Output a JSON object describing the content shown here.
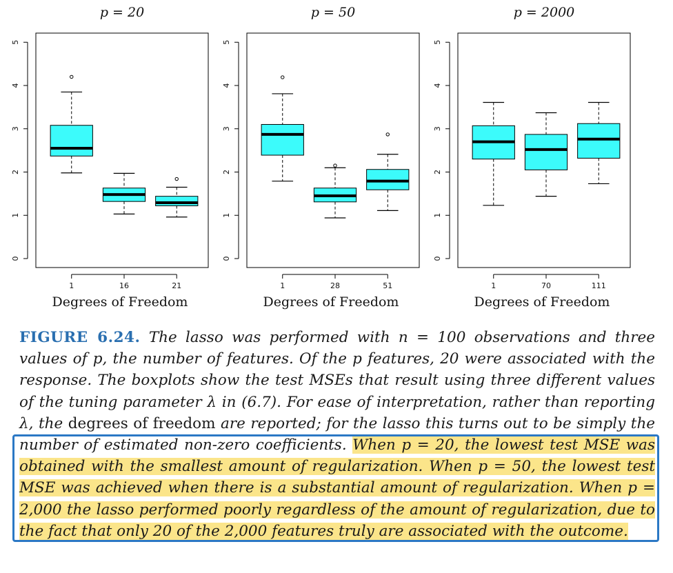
{
  "chart_data": [
    {
      "type": "box",
      "title": "p = 20",
      "xlabel": "Degrees of Freedom",
      "ylabel": "",
      "ylim": [
        0,
        5
      ],
      "yticks": [
        0,
        1,
        2,
        3,
        4,
        5
      ],
      "categories": [
        "1",
        "16",
        "21"
      ],
      "boxes": [
        {
          "whisker_low": 1.98,
          "q1": 2.37,
          "median": 2.55,
          "q3": 3.08,
          "whisker_high": 3.85,
          "outliers": [
            4.2
          ]
        },
        {
          "whisker_low": 1.03,
          "q1": 1.32,
          "median": 1.48,
          "q3": 1.63,
          "whisker_high": 1.97,
          "outliers": []
        },
        {
          "whisker_low": 0.96,
          "q1": 1.22,
          "median": 1.29,
          "q3": 1.44,
          "whisker_high": 1.65,
          "outliers": [
            1.84
          ]
        }
      ],
      "box_color": "#3cfbfb"
    },
    {
      "type": "box",
      "title": "p = 50",
      "xlabel": "Degrees of Freedom",
      "ylabel": "",
      "ylim": [
        0,
        5
      ],
      "yticks": [
        0,
        1,
        2,
        3,
        4,
        5
      ],
      "categories": [
        "1",
        "28",
        "51"
      ],
      "boxes": [
        {
          "whisker_low": 1.79,
          "q1": 2.39,
          "median": 2.87,
          "q3": 3.1,
          "whisker_high": 3.81,
          "outliers": [
            4.19
          ]
        },
        {
          "whisker_low": 0.94,
          "q1": 1.31,
          "median": 1.45,
          "q3": 1.63,
          "whisker_high": 2.1,
          "outliers": [
            2.15
          ]
        },
        {
          "whisker_low": 1.11,
          "q1": 1.59,
          "median": 1.79,
          "q3": 2.06,
          "whisker_high": 2.41,
          "outliers": [
            2.87
          ]
        }
      ],
      "box_color": "#3cfbfb"
    },
    {
      "type": "box",
      "title": "p = 2000",
      "xlabel": "Degrees of Freedom",
      "ylabel": "",
      "ylim": [
        0,
        5
      ],
      "yticks": [
        0,
        1,
        2,
        3,
        4,
        5
      ],
      "categories": [
        "1",
        "70",
        "111"
      ],
      "boxes": [
        {
          "whisker_low": 1.23,
          "q1": 2.3,
          "median": 2.7,
          "q3": 3.07,
          "whisker_high": 3.61,
          "outliers": []
        },
        {
          "whisker_low": 1.44,
          "q1": 2.05,
          "median": 2.52,
          "q3": 2.87,
          "whisker_high": 3.37,
          "outliers": []
        },
        {
          "whisker_low": 1.73,
          "q1": 2.32,
          "median": 2.76,
          "q3": 3.12,
          "whisker_high": 3.61,
          "outliers": []
        }
      ],
      "box_color": "#3cfbfb"
    }
  ],
  "caption": {
    "figure_label": "FIGURE 6.24.",
    "part1": " The lasso was performed with n = 100 observations and three values of p, the number of features. Of the p features, 20 were associated with the response. The boxplots show the test MSEs that result using three different values of the tuning parameter λ in (6.7). For ease of interpretation, rather than reporting λ, the ",
    "dof_phrase": "degrees of freedom",
    "part2": " are reported; for the lasso this turns out to be simply the number of estimated non-zero coefficients. ",
    "highlighted": "When p = 20, the lowest test MSE was obtained with the smallest amount of regularization. When p = 50, the lowest test MSE was achieved when there is a substantial amount of regularization. When p = 2,000 the lasso performed poorly regardless of the amount of regularization, due to the fact that only 20 of the 2,000 features truly are associated with the outcome."
  },
  "colors": {
    "box_fill": "#3cfbfb",
    "figure_label": "#2a6fb0",
    "highlight": "#fbe58a",
    "callout_border": "#2b78c5"
  }
}
